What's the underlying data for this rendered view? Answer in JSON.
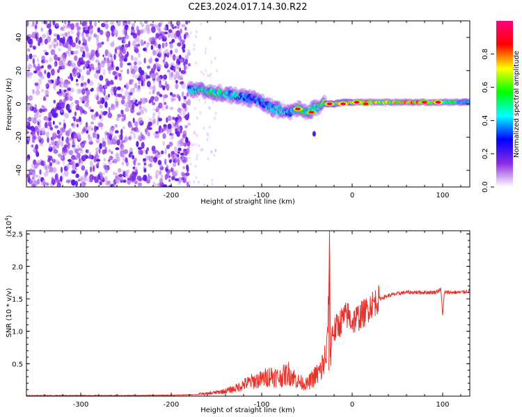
{
  "figure_title": "C2E3.2024.017.14.30.R22",
  "chart_data": [
    {
      "type": "heatmap",
      "xlabel": "Height of straight line (km)",
      "ylabel": "Frequency (Hz)",
      "xlim": [
        -360,
        130
      ],
      "ylim": [
        -50,
        50
      ],
      "xticks": [
        -300,
        -200,
        -100,
        0,
        100
      ],
      "yticks": [
        -40,
        -20,
        0,
        20,
        40
      ],
      "colorbar": {
        "label": "Normalized spectral amplitude",
        "range": [
          0,
          1
        ],
        "ticks": [
          "0.0",
          "0.2",
          "0.4",
          "0.6",
          "0.8"
        ],
        "tick_values": [
          0,
          0.2,
          0.4,
          0.6,
          0.8
        ],
        "colors": [
          "#ffffff",
          "#8a2be2",
          "#0000ff",
          "#00ffff",
          "#00ff00",
          "#ffff00",
          "#ff0000",
          "#ff0080"
        ]
      },
      "noise_region_x": [
        -360,
        -180
      ],
      "ridge": [
        {
          "x": -180,
          "y": 8,
          "amp": 0.35
        },
        {
          "x": -170,
          "y": 9,
          "amp": 0.45
        },
        {
          "x": -160,
          "y": 8,
          "amp": 0.5
        },
        {
          "x": -150,
          "y": 7,
          "amp": 0.5
        },
        {
          "x": -140,
          "y": 6,
          "amp": 0.45
        },
        {
          "x": -130,
          "y": 5,
          "amp": 0.45
        },
        {
          "x": -120,
          "y": 4,
          "amp": 0.4
        },
        {
          "x": -110,
          "y": 3,
          "amp": 0.35
        },
        {
          "x": -100,
          "y": 1,
          "amp": 0.35
        },
        {
          "x": -90,
          "y": -2,
          "amp": 0.4
        },
        {
          "x": -80,
          "y": -4,
          "amp": 0.45
        },
        {
          "x": -70,
          "y": -6,
          "amp": 0.35
        },
        {
          "x": -60,
          "y": -3,
          "amp": 0.5
        },
        {
          "x": -50,
          "y": -5,
          "amp": 0.5
        },
        {
          "x": -40,
          "y": -2,
          "amp": 0.45
        },
        {
          "x": -30,
          "y": 0,
          "amp": 0.55
        },
        {
          "x": -20,
          "y": 0,
          "amp": 0.6
        },
        {
          "x": -10,
          "y": 1,
          "amp": 0.65
        },
        {
          "x": 0,
          "y": 1,
          "amp": 0.7
        },
        {
          "x": 20,
          "y": 1,
          "amp": 0.7
        },
        {
          "x": 40,
          "y": 1,
          "amp": 0.65
        },
        {
          "x": 60,
          "y": 1,
          "amp": 0.7
        },
        {
          "x": 80,
          "y": 1,
          "amp": 0.75
        },
        {
          "x": 100,
          "y": 1,
          "amp": 0.65
        },
        {
          "x": 120,
          "y": 1,
          "amp": 0.45
        },
        {
          "x": 130,
          "y": 1,
          "amp": 0.4
        }
      ],
      "hotspots": [
        {
          "x": -60,
          "y": -3,
          "amp": 0.9
        },
        {
          "x": -45,
          "y": -5,
          "amp": 0.85
        },
        {
          "x": -25,
          "y": 0,
          "amp": 0.9
        },
        {
          "x": -10,
          "y": 0,
          "amp": 0.95
        },
        {
          "x": 5,
          "y": 1,
          "amp": 0.9
        },
        {
          "x": 15,
          "y": 0,
          "amp": 0.85
        },
        {
          "x": 80,
          "y": 1,
          "amp": 0.85
        },
        {
          "x": 95,
          "y": 1,
          "amp": 0.9
        }
      ],
      "spur": [
        {
          "x": -42,
          "y": -18,
          "amp": 0.2
        }
      ]
    },
    {
      "type": "line",
      "xlabel": "Height of straight line (km)",
      "ylabel": "SNR (10 * v/v)",
      "y_exponent": "(x10",
      "y_exponent_power": "4",
      "y_exponent_close": ")",
      "xlim": [
        -360,
        130
      ],
      "ylim": [
        0,
        2.55
      ],
      "xticks": [
        -300,
        -200,
        -100,
        0,
        100
      ],
      "yticks": [
        0.5,
        1.0,
        1.5,
        2.0,
        2.5
      ],
      "ytick_labels": [
        "0.5",
        "1.0",
        "1.5",
        "2.0",
        "2.5"
      ],
      "color": "#e8302a",
      "series": [
        {
          "x": [
            -360,
            -300,
            -250,
            -200,
            -180,
            -160,
            -140,
            -130,
            -120,
            -110,
            -100,
            -90,
            -80,
            -70,
            -60,
            -50,
            -45,
            -40,
            -35,
            -30,
            -28,
            -26,
            -25,
            -24,
            -22,
            -20,
            -15,
            -10,
            -5,
            0,
            5,
            10,
            15,
            20,
            25,
            30,
            40,
            50,
            60,
            70,
            80,
            90,
            95,
            98,
            100,
            102,
            105,
            110,
            120,
            130
          ],
          "y": [
            0.01,
            0.01,
            0.01,
            0.015,
            0.02,
            0.03,
            0.06,
            0.09,
            0.14,
            0.18,
            0.2,
            0.25,
            0.22,
            0.28,
            0.18,
            0.14,
            0.2,
            0.25,
            0.3,
            0.45,
            0.7,
            1.5,
            2.55,
            0.6,
            1.0,
            1.0,
            1.1,
            1.2,
            1.25,
            1.15,
            1.2,
            1.25,
            1.3,
            1.4,
            1.45,
            1.5,
            1.55,
            1.58,
            1.6,
            1.6,
            1.6,
            1.6,
            1.62,
            1.65,
            1.25,
            1.6,
            1.6,
            1.6,
            1.6,
            1.62
          ]
        }
      ]
    }
  ]
}
